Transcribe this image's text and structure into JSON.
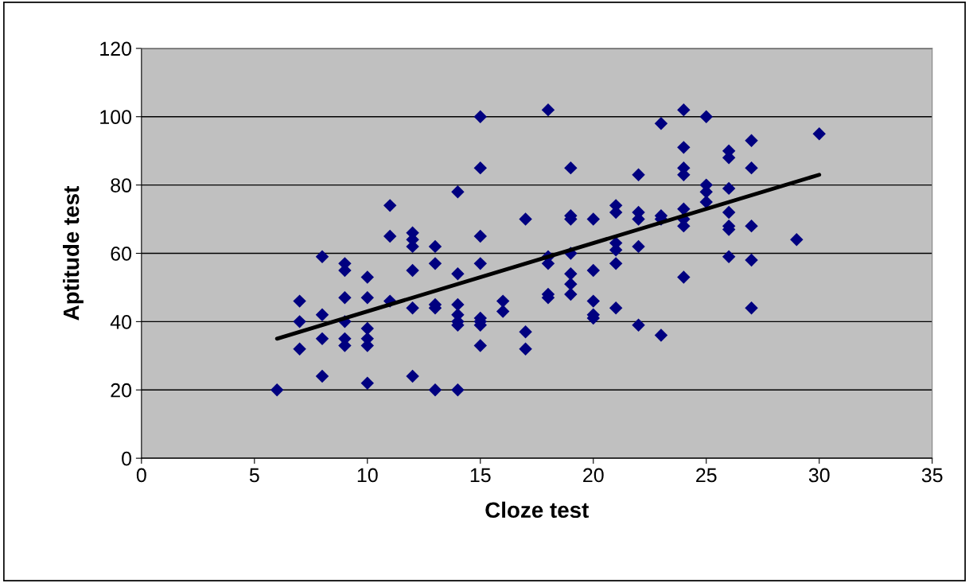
{
  "chart_data": {
    "type": "scatter",
    "xlabel": "Cloze test",
    "ylabel": "Aptitude test",
    "xlim": [
      0,
      35
    ],
    "xticks": [
      0,
      5,
      10,
      15,
      20,
      25,
      30,
      35
    ],
    "ylim": [
      0,
      120
    ],
    "yticks": [
      0,
      20,
      40,
      60,
      80,
      100,
      120
    ],
    "grid": "y",
    "legend": false,
    "marker": "diamond",
    "series": [
      {
        "color": "#000080",
        "x": [
          6,
          7,
          7,
          7,
          8,
          8,
          8,
          8,
          9,
          9,
          9,
          9,
          9,
          9,
          10,
          10,
          10,
          10,
          10,
          10,
          11,
          11,
          11,
          12,
          12,
          12,
          12,
          12,
          12,
          13,
          13,
          13,
          13,
          13,
          14,
          14,
          14,
          14,
          14,
          14,
          14,
          15,
          15,
          15,
          15,
          15,
          15,
          15,
          15,
          16,
          16,
          17,
          17,
          17,
          18,
          18,
          18,
          18,
          18,
          19,
          19,
          19,
          19,
          19,
          19,
          19,
          20,
          20,
          20,
          20,
          20,
          21,
          21,
          21,
          21,
          21,
          21,
          22,
          22,
          22,
          22,
          22,
          23,
          23,
          23,
          23,
          24,
          24,
          24,
          24,
          24,
          24,
          24,
          24,
          25,
          25,
          25,
          25,
          26,
          26,
          26,
          26,
          26,
          26,
          26,
          27,
          27,
          27,
          27,
          27,
          29,
          30
        ],
        "values": [
          20,
          46,
          40,
          32,
          59,
          42,
          35,
          24,
          57,
          55,
          47,
          40,
          35,
          33,
          53,
          47,
          38,
          35,
          33,
          22,
          74,
          65,
          46,
          66,
          64,
          62,
          55,
          44,
          24,
          62,
          57,
          45,
          44,
          20,
          78,
          54,
          45,
          42,
          40,
          39,
          20,
          100,
          85,
          65,
          57,
          41,
          40,
          39,
          33,
          46,
          43,
          70,
          37,
          32,
          102,
          59,
          57,
          48,
          47,
          85,
          71,
          70,
          60,
          54,
          51,
          48,
          70,
          55,
          46,
          42,
          41,
          74,
          72,
          63,
          61,
          57,
          44,
          83,
          72,
          70,
          62,
          39,
          98,
          71,
          70,
          36,
          102,
          91,
          85,
          83,
          73,
          70,
          68,
          53,
          100,
          80,
          78,
          75,
          90,
          88,
          79,
          72,
          68,
          67,
          59,
          93,
          85,
          68,
          58,
          44,
          64,
          95
        ]
      },
      {
        "type": "line",
        "color": "#000000",
        "marker": "none",
        "line_style": "solid",
        "x": [
          6,
          30
        ],
        "values": [
          35,
          83
        ]
      }
    ]
  }
}
